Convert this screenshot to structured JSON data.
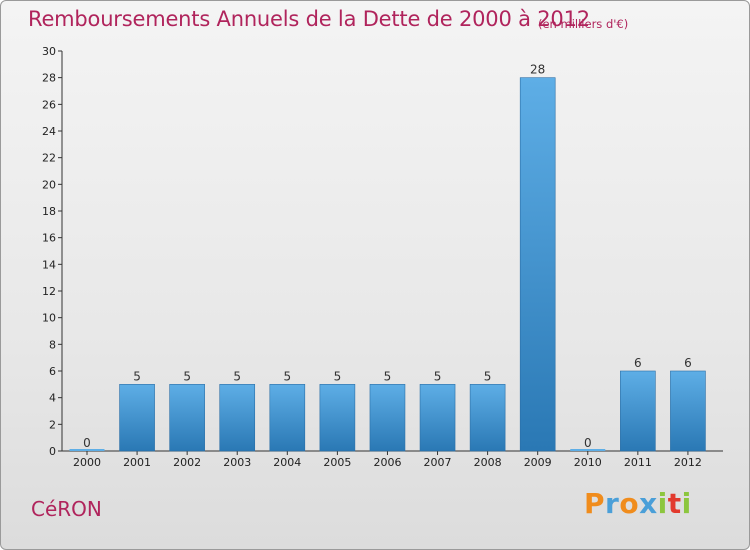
{
  "header": {
    "title": "Remboursements Annuels de la Dette de 2000 à 2012",
    "subtitle": "(en milliers d'€)"
  },
  "footer": {
    "commune": "CéRON",
    "logo_text": "Proxiti"
  },
  "colors": {
    "title": "#b0245c",
    "bar_light": "#5eaee6",
    "bar_dark": "#2a78b4",
    "logo_letters": [
      "#f08c1c",
      "#4a9fd8",
      "#f08c1c",
      "#4a9fd8",
      "#8cc63e",
      "#e23a2e",
      "#8cc63e"
    ]
  },
  "chart_data": {
    "type": "bar",
    "categories": [
      "2000",
      "2001",
      "2002",
      "2003",
      "2004",
      "2005",
      "2006",
      "2007",
      "2008",
      "2009",
      "2010",
      "2011",
      "2012"
    ],
    "values": [
      0,
      5,
      5,
      5,
      5,
      5,
      5,
      5,
      5,
      28,
      0,
      6,
      6
    ],
    "ylim": [
      0,
      30
    ],
    "yticks": [
      0,
      2,
      4,
      6,
      8,
      10,
      12,
      14,
      16,
      18,
      20,
      22,
      24,
      26,
      28,
      30
    ],
    "grid": false
  }
}
